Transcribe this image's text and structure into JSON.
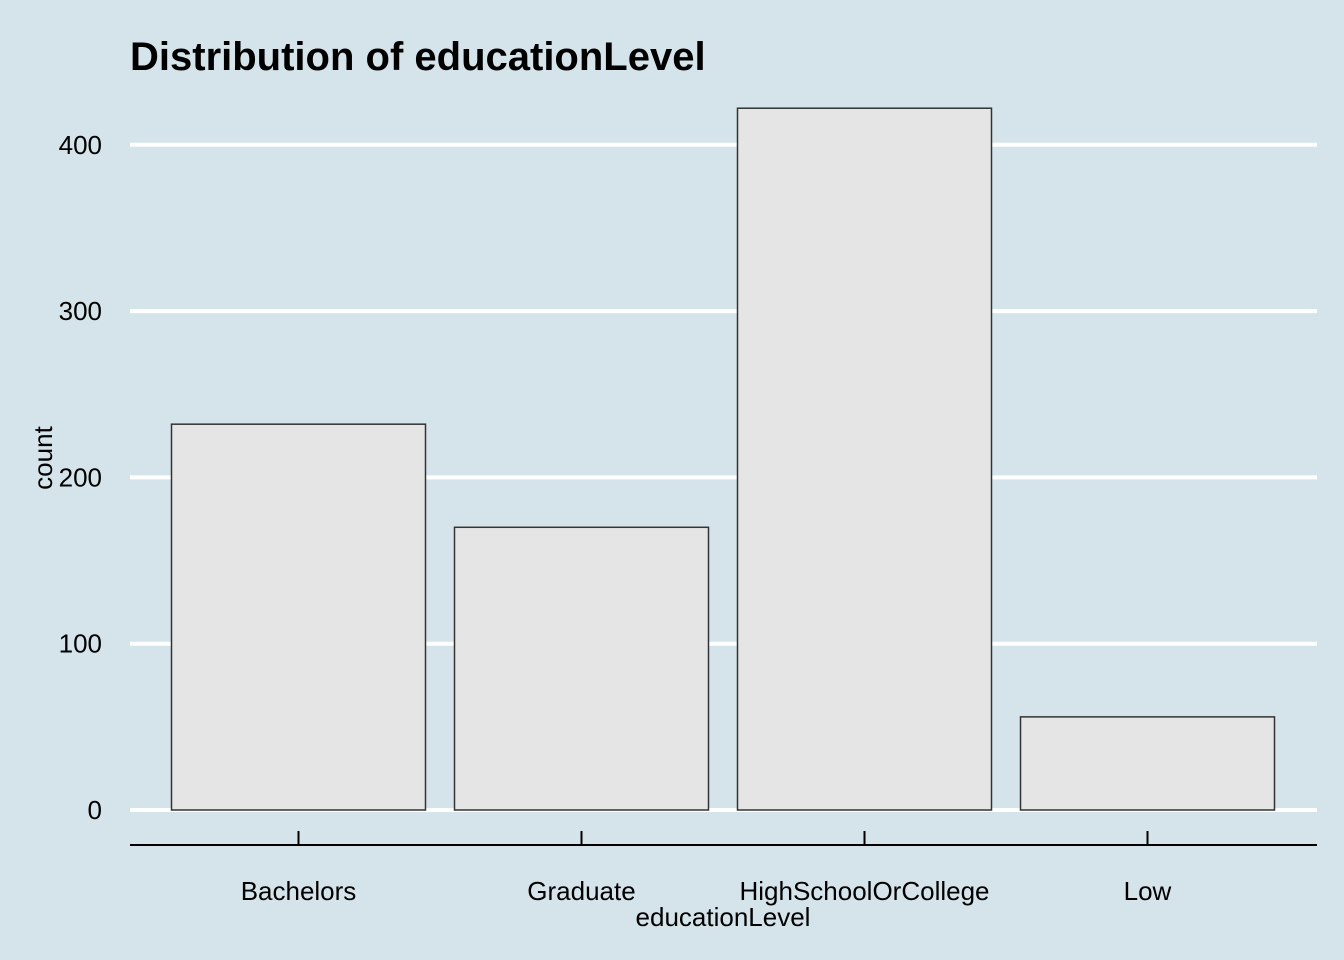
{
  "chart_data": {
    "type": "bar",
    "title": "Distribution of educationLevel",
    "xlabel": "educationLevel",
    "ylabel": "count",
    "categories": [
      "Bachelors",
      "Graduate",
      "HighSchoolOrCollege",
      "Low"
    ],
    "values": [
      232,
      170,
      422,
      56
    ],
    "ylim": [
      0,
      422
    ],
    "yticks": [
      0,
      100,
      200,
      300,
      400
    ],
    "ytick_labels": [
      "0",
      "100",
      "200",
      "300",
      "400"
    ],
    "grid": "horizontal-major",
    "legend": "none",
    "colors": {
      "background": "#d5e4eb",
      "bar_fill": "#e5e5e5",
      "bar_stroke": "#333333",
      "gridline": "#ffffff",
      "axis_line": "#000000",
      "text": "#000000"
    }
  }
}
